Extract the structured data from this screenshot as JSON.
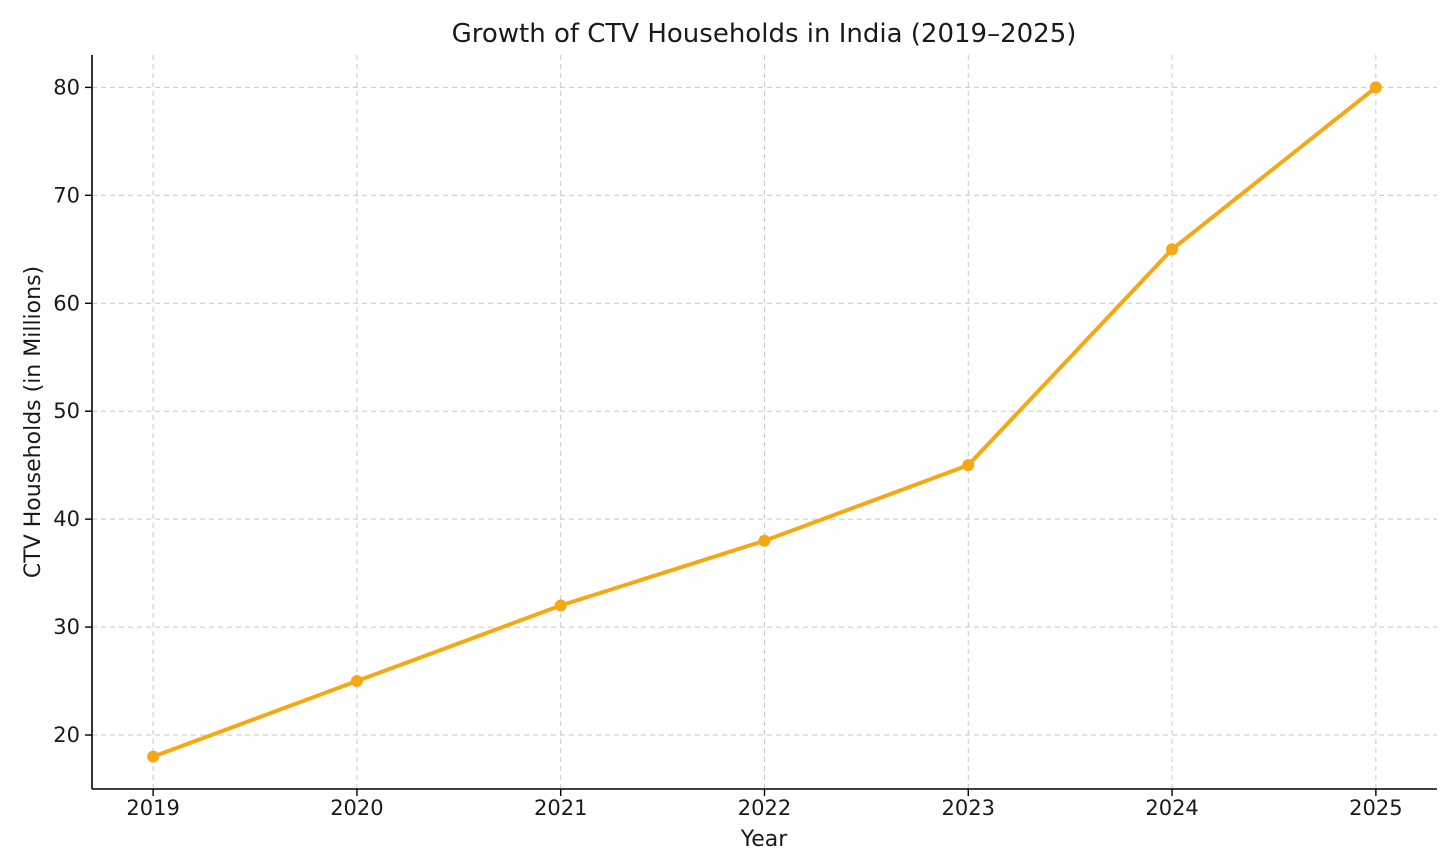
{
  "chart_data": {
    "type": "line",
    "title": "Growth of CTV Households in India (2019–2025)",
    "xlabel": "Year",
    "ylabel": "CTV Households (in Millions)",
    "x": [
      2019,
      2020,
      2021,
      2022,
      2023,
      2024,
      2025
    ],
    "x_tick_labels": [
      "2019",
      "2020",
      "2021",
      "2022",
      "2023",
      "2024",
      "2025"
    ],
    "y_ticks": [
      20,
      30,
      40,
      50,
      60,
      70,
      80
    ],
    "y_tick_labels": [
      "20",
      "30",
      "40",
      "50",
      "60",
      "70",
      "80"
    ],
    "xlim": [
      2018.7,
      2025.3
    ],
    "ylim": [
      15,
      83
    ],
    "grid": true,
    "series": [
      {
        "values": [
          18,
          25,
          32,
          38,
          45,
          65,
          80
        ],
        "color": "#f5a814",
        "marker": "circle"
      }
    ]
  }
}
